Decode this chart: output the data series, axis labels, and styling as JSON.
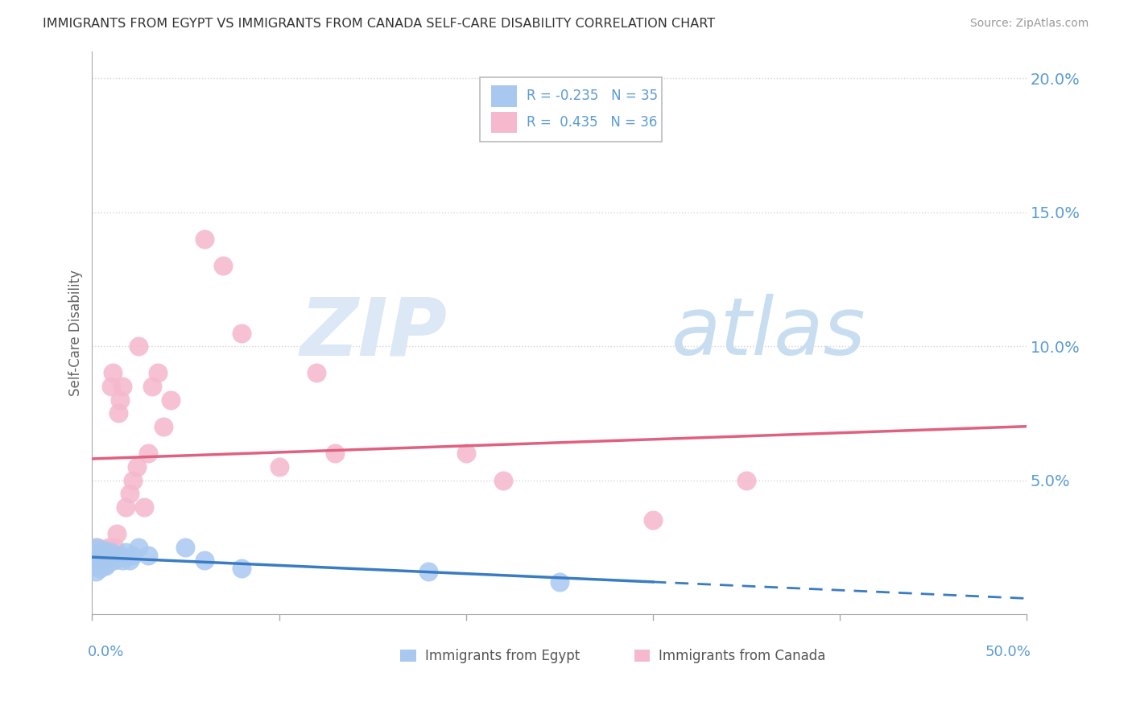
{
  "title": "IMMIGRANTS FROM EGYPT VS IMMIGRANTS FROM CANADA SELF-CARE DISABILITY CORRELATION CHART",
  "source": "Source: ZipAtlas.com",
  "ylabel": "Self-Care Disability",
  "legend_egypt": "Immigrants from Egypt",
  "legend_canada": "Immigrants from Canada",
  "r_egypt": -0.235,
  "n_egypt": 35,
  "r_canada": 0.435,
  "n_canada": 36,
  "egypt_color": "#a8c8f0",
  "canada_color": "#f5b8cc",
  "egypt_line_color": "#3a7cc4",
  "canada_line_color": "#e06080",
  "background_color": "#ffffff",
  "watermark_zip": "ZIP",
  "watermark_atlas": "atlas",
  "xlim": [
    0.0,
    0.5
  ],
  "ylim": [
    0.0,
    0.21
  ],
  "yticks": [
    0.0,
    0.05,
    0.1,
    0.15,
    0.2
  ],
  "ytick_labels": [
    "",
    "5.0%",
    "10.0%",
    "15.0%",
    "20.0%"
  ],
  "egypt_points_x": [
    0.0,
    0.001,
    0.001,
    0.002,
    0.002,
    0.003,
    0.003,
    0.004,
    0.004,
    0.005,
    0.005,
    0.006,
    0.006,
    0.007,
    0.007,
    0.008,
    0.008,
    0.009,
    0.01,
    0.01,
    0.011,
    0.012,
    0.013,
    0.015,
    0.016,
    0.018,
    0.02,
    0.022,
    0.025,
    0.03,
    0.05,
    0.06,
    0.08,
    0.18,
    0.25
  ],
  "egypt_points_y": [
    0.02,
    0.022,
    0.018,
    0.025,
    0.016,
    0.021,
    0.019,
    0.023,
    0.017,
    0.022,
    0.018,
    0.024,
    0.02,
    0.021,
    0.018,
    0.023,
    0.019,
    0.021,
    0.023,
    0.02,
    0.022,
    0.02,
    0.021,
    0.022,
    0.02,
    0.023,
    0.02,
    0.022,
    0.025,
    0.022,
    0.025,
    0.02,
    0.017,
    0.016,
    0.012
  ],
  "canada_points_x": [
    0.002,
    0.003,
    0.004,
    0.005,
    0.006,
    0.007,
    0.008,
    0.009,
    0.01,
    0.011,
    0.012,
    0.013,
    0.014,
    0.015,
    0.016,
    0.018,
    0.02,
    0.022,
    0.024,
    0.025,
    0.028,
    0.03,
    0.032,
    0.035,
    0.038,
    0.042,
    0.06,
    0.07,
    0.08,
    0.1,
    0.12,
    0.13,
    0.2,
    0.22,
    0.3,
    0.35
  ],
  "canada_points_y": [
    0.022,
    0.025,
    0.02,
    0.023,
    0.02,
    0.022,
    0.021,
    0.025,
    0.085,
    0.09,
    0.025,
    0.03,
    0.075,
    0.08,
    0.085,
    0.04,
    0.045,
    0.05,
    0.055,
    0.1,
    0.04,
    0.06,
    0.085,
    0.09,
    0.07,
    0.08,
    0.14,
    0.13,
    0.105,
    0.055,
    0.09,
    0.06,
    0.06,
    0.05,
    0.035,
    0.05
  ],
  "grid_color": "#d0d0d0",
  "tick_color": "#5b9bd5"
}
